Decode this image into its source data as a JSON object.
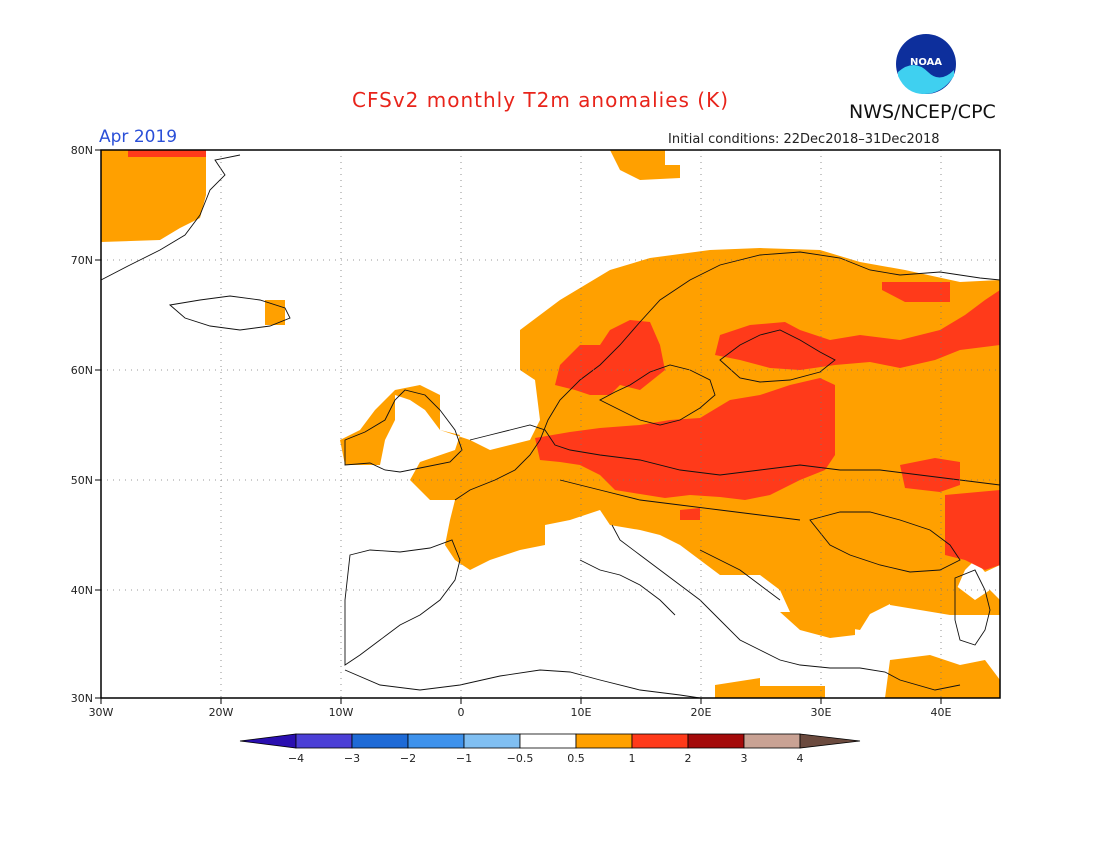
{
  "header": {
    "title": "CFSv2 monthly T2m anomalies (K)",
    "month": "Apr 2019",
    "agency": "NWS/NCEP/CPC",
    "init_conditions": "Initial conditions: 22Dec2018–31Dec2018",
    "logo_text": "NOAA"
  },
  "map": {
    "lon_range": [
      -30,
      45
    ],
    "lat_range": [
      30,
      80
    ],
    "lat_ticks": [
      "30N",
      "40N",
      "50N",
      "60N",
      "70N",
      "80N"
    ],
    "lon_ticks": [
      "30W",
      "20W",
      "10W",
      "0",
      "10E",
      "20E",
      "30E",
      "40E"
    ],
    "gridlines": "dotted",
    "anomaly_colors": {
      "0.5 to 1": "#ffa000",
      "1 to 2": "#ff3a1a"
    }
  },
  "colorbar": {
    "labels": [
      "−4",
      "−3",
      "−2",
      "−1",
      "−0.5",
      "0.5",
      "1",
      "2",
      "3",
      "4"
    ],
    "colors": [
      "#2a0fb0",
      "#4b3fd6",
      "#1e6ad6",
      "#3e92ec",
      "#80bff2",
      "#ffffff",
      "#ffa000",
      "#ff3a1a",
      "#a40a0a",
      "#c9a294",
      "#6b4a3e"
    ]
  }
}
